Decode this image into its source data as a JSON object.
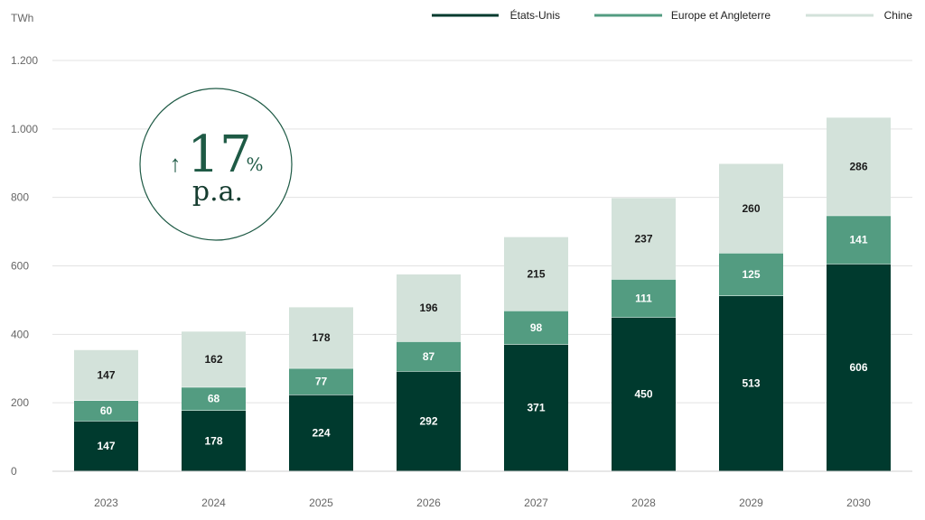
{
  "chart_data": {
    "type": "bar",
    "stacked": true,
    "unit_label": "TWh",
    "categories": [
      "2023",
      "2024",
      "2025",
      "2026",
      "2027",
      "2028",
      "2029",
      "2030"
    ],
    "series": [
      {
        "name": "États-Unis",
        "color": "#003a2e",
        "label_color": "#ffffff",
        "values": [
          147,
          178,
          224,
          292,
          371,
          450,
          513,
          606
        ]
      },
      {
        "name": "Europe et Angleterre",
        "color": "#539c81",
        "label_color": "#ffffff",
        "values": [
          60,
          68,
          77,
          87,
          98,
          111,
          125,
          141
        ]
      },
      {
        "name": "Chine",
        "color": "#d3e2da",
        "label_color": "#1a1a1a",
        "values": [
          147,
          162,
          178,
          196,
          215,
          237,
          260,
          286
        ]
      }
    ],
    "ylim": [
      0,
      1200
    ],
    "y_ticks": [
      {
        "value": 0,
        "label": "0"
      },
      {
        "value": 200,
        "label": "200"
      },
      {
        "value": 400,
        "label": "400"
      },
      {
        "value": 600,
        "label": "600"
      },
      {
        "value": 800,
        "label": "800"
      },
      {
        "value": 1000,
        "label": "1.000"
      },
      {
        "value": 1200,
        "label": "1.200"
      }
    ],
    "grid": true,
    "legend_position": "top-right",
    "annotation": {
      "arrow": "↑",
      "number": "17",
      "percent": "%",
      "text": "p.a.",
      "color": "#1e5a45"
    }
  }
}
